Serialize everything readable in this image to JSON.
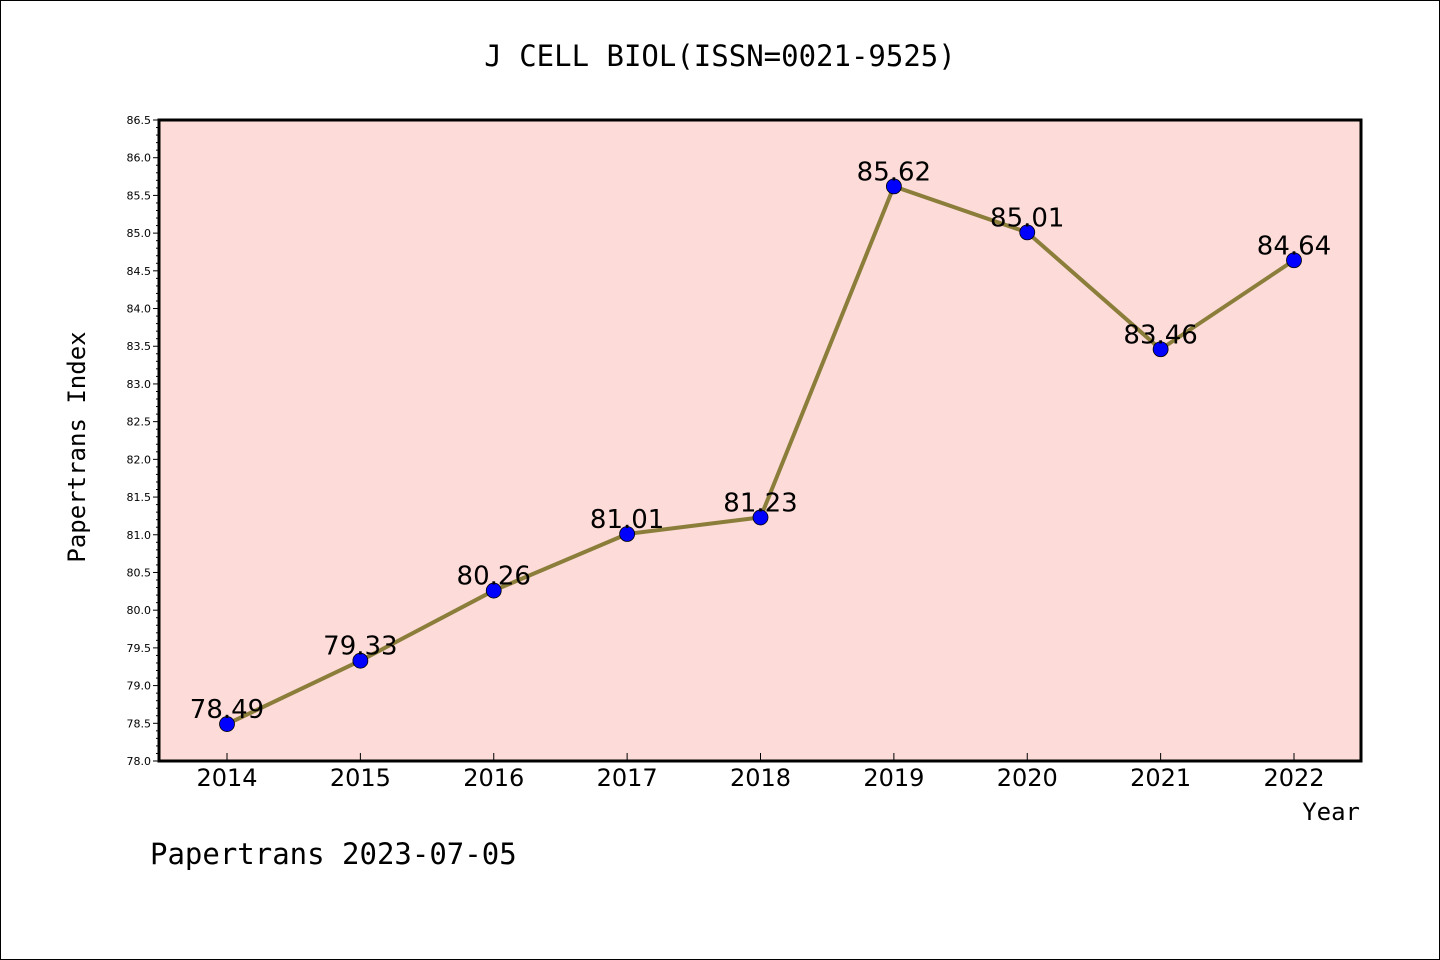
{
  "colors": {
    "plot_background": "#fddbd8",
    "line": "#8b7d3a",
    "marker": "#0000ff",
    "frame": "#000000"
  },
  "chart_data": {
    "type": "line",
    "title": "J CELL BIOL(ISSN=0021-9525)",
    "xlabel": "Year",
    "ylabel": "Papertrans Index",
    "footer": "Papertrans 2023-07-05",
    "categories": [
      "2014",
      "2015",
      "2016",
      "2017",
      "2018",
      "2019",
      "2020",
      "2021",
      "2022"
    ],
    "values": [
      78.49,
      79.33,
      80.26,
      81.01,
      81.23,
      85.62,
      85.01,
      83.46,
      84.64
    ],
    "value_labels": [
      "78.49",
      "79.33",
      "80.26",
      "81.01",
      "81.23",
      "85.62",
      "85.01",
      "83.46",
      "84.64"
    ],
    "ylim": [
      78.0,
      86.5
    ],
    "yticks": [
      "78.0",
      "78.5",
      "79.0",
      "79.5",
      "80.0",
      "80.5",
      "81.0",
      "81.5",
      "82.0",
      "82.5",
      "83.0",
      "83.5",
      "84.0",
      "84.5",
      "85.0",
      "85.5",
      "86.0",
      "86.5"
    ],
    "grid": false,
    "legend": "none"
  }
}
